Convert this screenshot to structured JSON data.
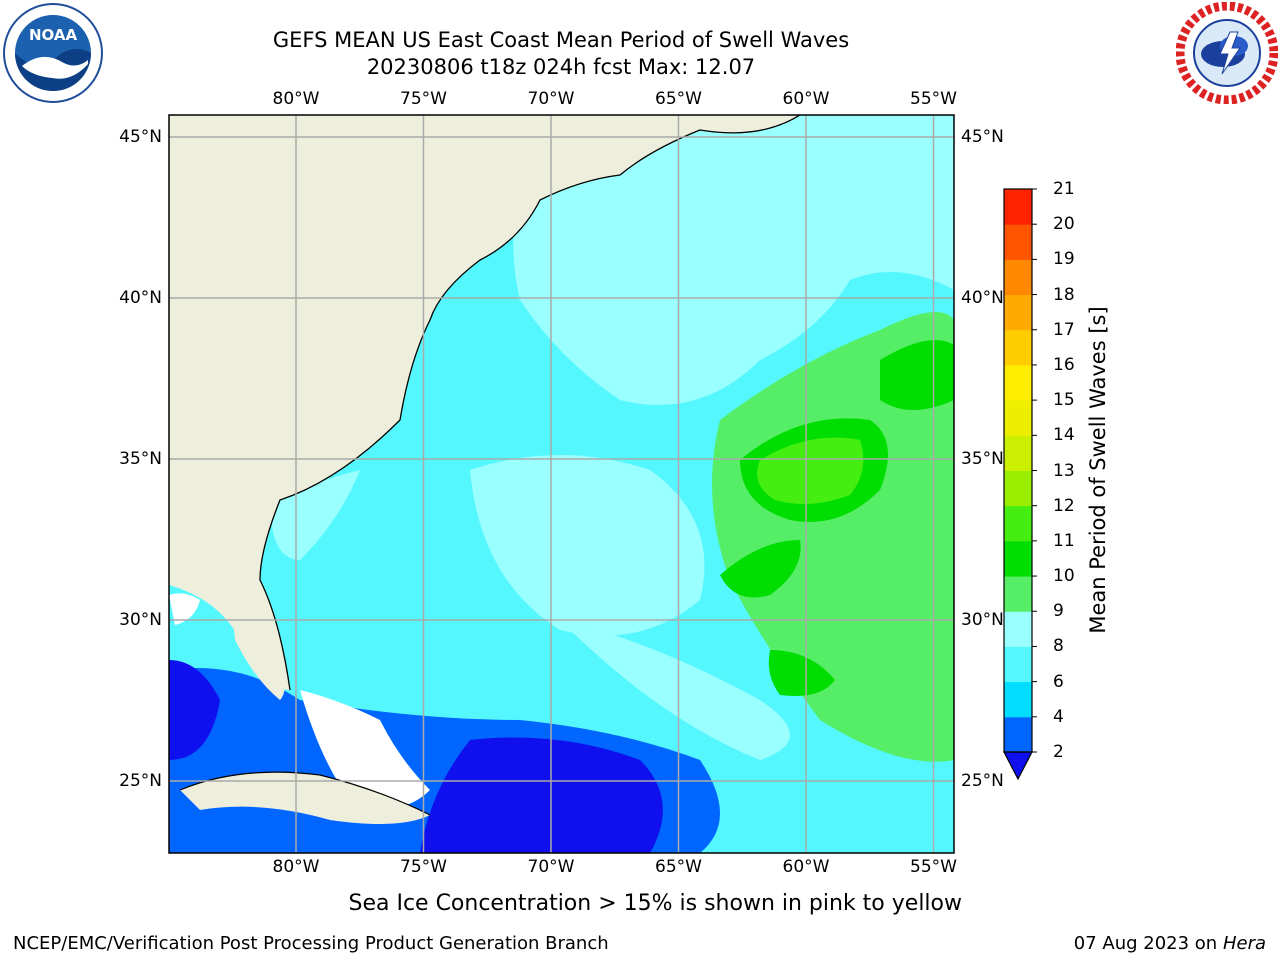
{
  "header": {
    "title_line1": "GEFS MEAN US East Coast Mean Period of Swell Waves",
    "title_line2": "20230806 t18z 024h fcst   Max: 12.07"
  },
  "logos": {
    "left": {
      "icon": "noaa-logo-icon",
      "text": "NOAA"
    },
    "right": {
      "icon": "nws-logo-icon"
    }
  },
  "map": {
    "lon_labels": [
      "80°W",
      "75°W",
      "70°W",
      "65°W",
      "60°W",
      "55°W"
    ],
    "lat_labels": [
      "45°N",
      "40°N",
      "35°N",
      "30°N",
      "25°N"
    ],
    "lon_values": [
      -80,
      -75,
      -70,
      -65,
      -60,
      -55
    ],
    "lat_values": [
      45,
      40,
      35,
      30,
      25
    ],
    "colors": {
      "land": "#eeeedd",
      "grid": "#aaaaaa",
      "coast": "#000000",
      "ice_missing": "#ffffff"
    }
  },
  "colorbar": {
    "title": "Mean Period of Swell Waves [s]",
    "tick_labels": [
      "2",
      "4",
      "6",
      "8",
      "9",
      "10",
      "11",
      "12",
      "13",
      "14",
      "15",
      "16",
      "17",
      "18",
      "19",
      "20",
      "21"
    ],
    "colors": [
      "#0066ff",
      "#00ddff",
      "#55f7ff",
      "#99ffff",
      "#55ee66",
      "#00dd00",
      "#44ee11",
      "#99ee00",
      "#ccee00",
      "#eeee00",
      "#ffee00",
      "#ffcc00",
      "#ffaa00",
      "#ff8800",
      "#ff5500",
      "#ff2200"
    ],
    "under_color": "#1010ee"
  },
  "caption": "Sea Ice Concentration > 15% is shown in pink to yellow",
  "footer": {
    "left": "NCEP/EMC/Verification Post Processing Product Generation Branch",
    "right_date": "07 Aug 2023 on",
    "right_host": "Hera"
  }
}
